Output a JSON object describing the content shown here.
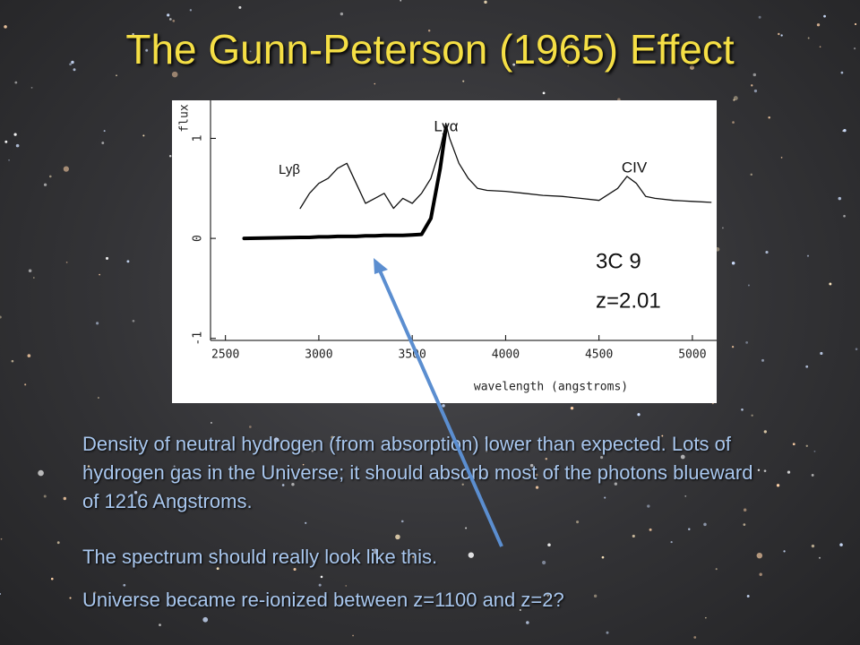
{
  "slide": {
    "title": "The Gunn-Peterson (1965) Effect",
    "paragraphs": [
      "Density of neutral hydrogen (from absorption) lower than expected. Lots of hydrogen gas in the Universe; it should absorb most of the photons blueward of 1216 Angstroms.",
      "The spectrum should really look like this.",
      "Universe became re-ionized between z=1100 and z=2?"
    ]
  },
  "chart_data": {
    "type": "line",
    "x_label": "wavelength (angstroms)",
    "y_label": "flux",
    "annotations": [
      "Lyβ",
      "Lyα",
      "CIV",
      "3C 9",
      "z=2.01"
    ],
    "x": [
      2600,
      2900,
      2950,
      3000,
      3050,
      3100,
      3150,
      3200,
      3250,
      3300,
      3350,
      3400,
      3450,
      3500,
      3550,
      3600,
      3650,
      3680,
      3700,
      3750,
      3800,
      3850,
      3900,
      4000,
      4100,
      4200,
      4300,
      4400,
      4500,
      4600,
      4650,
      4700,
      4750,
      4800,
      4900,
      5000,
      5100
    ],
    "series": [
      {
        "color": "#111111",
        "values": [
          null,
          0.3,
          0.45,
          0.55,
          0.6,
          0.7,
          0.75,
          0.55,
          0.35,
          0.4,
          0.45,
          0.3,
          0.4,
          0.35,
          0.45,
          0.6,
          0.9,
          1.15,
          1.0,
          0.75,
          0.6,
          0.5,
          0.48,
          0.47,
          0.45,
          0.43,
          0.42,
          0.4,
          0.38,
          0.5,
          0.62,
          0.55,
          0.42,
          0.4,
          0.38,
          0.37,
          0.36
        ]
      },
      {
        "color": "#000000",
        "values": [
          0.0,
          0.01,
          0.01,
          0.015,
          0.015,
          0.02,
          0.02,
          0.02,
          0.025,
          0.025,
          0.03,
          0.03,
          0.03,
          0.035,
          0.04,
          0.2,
          0.7,
          1.1,
          null,
          null,
          null,
          null,
          null,
          null,
          null,
          null,
          null,
          null,
          null,
          null,
          null,
          null,
          null,
          null,
          null,
          null,
          null
        ]
      }
    ],
    "xlim": [
      2420,
      5130
    ],
    "ylim": [
      -1.02,
      1.38
    ],
    "xticks": [
      2500,
      3000,
      3500,
      4000,
      4500,
      5000
    ],
    "yticks": [
      -1,
      0,
      1
    ]
  }
}
